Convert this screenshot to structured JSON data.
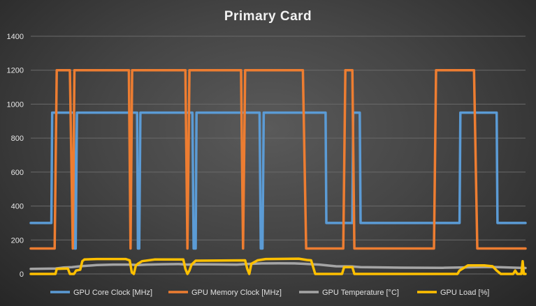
{
  "chart_data": {
    "type": "line",
    "title": "Primary  Card",
    "xlabel": "",
    "ylabel": "",
    "ylim": [
      0,
      1400
    ],
    "yticks": [
      0,
      200,
      400,
      600,
      800,
      1000,
      1200,
      1400
    ],
    "grid": true,
    "legend_position": "bottom",
    "series": [
      {
        "name": "GPU Core Clock [MHz]",
        "color": "#5b9bd5",
        "points": [
          [
            0,
            300
          ],
          [
            5,
            300
          ],
          [
            5.2,
            950
          ],
          [
            10.5,
            950
          ],
          [
            10.6,
            150
          ],
          [
            10.9,
            150
          ],
          [
            11.2,
            950
          ],
          [
            25.8,
            950
          ],
          [
            26,
            150
          ],
          [
            26.3,
            150
          ],
          [
            26.6,
            950
          ],
          [
            39.2,
            950
          ],
          [
            39.5,
            150
          ],
          [
            40,
            150
          ],
          [
            40.2,
            950
          ],
          [
            55.5,
            950
          ],
          [
            55.8,
            150
          ],
          [
            56.2,
            150
          ],
          [
            56.5,
            950
          ],
          [
            71.5,
            950
          ],
          [
            71.7,
            300
          ],
          [
            78,
            300
          ],
          [
            78.2,
            950
          ],
          [
            79.8,
            950
          ],
          [
            80,
            300
          ],
          [
            104,
            300
          ],
          [
            104.2,
            950
          ],
          [
            113,
            950
          ],
          [
            113.2,
            300
          ],
          [
            120,
            300
          ]
        ]
      },
      {
        "name": "GPU Memory Clock [MHz]",
        "color": "#ed7d31",
        "points": [
          [
            0,
            150
          ],
          [
            5.8,
            150
          ],
          [
            6.3,
            1200
          ],
          [
            9.5,
            1200
          ],
          [
            10.2,
            150
          ],
          [
            10.6,
            1200
          ],
          [
            23.8,
            1200
          ],
          [
            24.2,
            150
          ],
          [
            24.6,
            1200
          ],
          [
            37.5,
            1200
          ],
          [
            38,
            150
          ],
          [
            38.5,
            1200
          ],
          [
            51,
            1200
          ],
          [
            51.5,
            150
          ],
          [
            52,
            1200
          ],
          [
            66,
            1200
          ],
          [
            66.8,
            150
          ],
          [
            68.5,
            150
          ],
          [
            69.2,
            150
          ],
          [
            75.8,
            150
          ],
          [
            76.3,
            1200
          ],
          [
            78,
            1200
          ],
          [
            78.5,
            150
          ],
          [
            85,
            150
          ],
          [
            88,
            150
          ],
          [
            97.8,
            150
          ],
          [
            98.3,
            1200
          ],
          [
            107.5,
            1200
          ],
          [
            108.3,
            150
          ],
          [
            120,
            150
          ]
        ]
      },
      {
        "name": "GPU Temperature [°C]",
        "color": "#a5a5a5",
        "points": [
          [
            0,
            30
          ],
          [
            6,
            32
          ],
          [
            8,
            38
          ],
          [
            10,
            40
          ],
          [
            12,
            45
          ],
          [
            16,
            52
          ],
          [
            20,
            55
          ],
          [
            24,
            55
          ],
          [
            26,
            52
          ],
          [
            28,
            55
          ],
          [
            32,
            57
          ],
          [
            36,
            58
          ],
          [
            38,
            55
          ],
          [
            40,
            57
          ],
          [
            46,
            56
          ],
          [
            50,
            55
          ],
          [
            52,
            58
          ],
          [
            56,
            62
          ],
          [
            60,
            63
          ],
          [
            64,
            62
          ],
          [
            66,
            60
          ],
          [
            70,
            55
          ],
          [
            74,
            45
          ],
          [
            78,
            44
          ],
          [
            80,
            40
          ],
          [
            90,
            37
          ],
          [
            100,
            36
          ],
          [
            104,
            38
          ],
          [
            108,
            40
          ],
          [
            112,
            41
          ],
          [
            116,
            38
          ],
          [
            120,
            35
          ]
        ]
      },
      {
        "name": "GPU Load [%]",
        "color": "#ffc000",
        "points": [
          [
            0,
            0
          ],
          [
            6,
            0
          ],
          [
            6.3,
            30
          ],
          [
            9,
            32
          ],
          [
            9.5,
            0
          ],
          [
            10.5,
            0
          ],
          [
            11,
            20
          ],
          [
            12,
            25
          ],
          [
            12.5,
            75
          ],
          [
            13,
            85
          ],
          [
            16,
            88
          ],
          [
            23,
            88
          ],
          [
            24,
            80
          ],
          [
            24.5,
            10
          ],
          [
            25,
            0
          ],
          [
            25.5,
            50
          ],
          [
            26,
            60
          ],
          [
            27,
            75
          ],
          [
            30,
            85
          ],
          [
            37,
            85
          ],
          [
            37.5,
            30
          ],
          [
            38,
            0
          ],
          [
            38.5,
            20
          ],
          [
            39,
            55
          ],
          [
            40,
            78
          ],
          [
            52,
            80
          ],
          [
            52.5,
            30
          ],
          [
            53,
            0
          ],
          [
            53.5,
            60
          ],
          [
            55,
            80
          ],
          [
            57,
            88
          ],
          [
            65,
            90
          ],
          [
            67,
            82
          ],
          [
            68,
            80
          ],
          [
            69,
            0
          ],
          [
            75.5,
            0
          ],
          [
            76,
            40
          ],
          [
            78,
            40
          ],
          [
            78.5,
            0
          ],
          [
            103.5,
            0
          ],
          [
            104,
            20
          ],
          [
            105,
            35
          ],
          [
            106,
            50
          ],
          [
            110,
            50
          ],
          [
            112,
            45
          ],
          [
            113,
            20
          ],
          [
            114,
            0
          ],
          [
            117,
            0
          ],
          [
            117.5,
            20
          ],
          [
            118,
            0
          ],
          [
            119,
            0
          ],
          [
            119.3,
            75
          ],
          [
            119.6,
            0
          ],
          [
            120,
            0
          ]
        ]
      }
    ]
  }
}
